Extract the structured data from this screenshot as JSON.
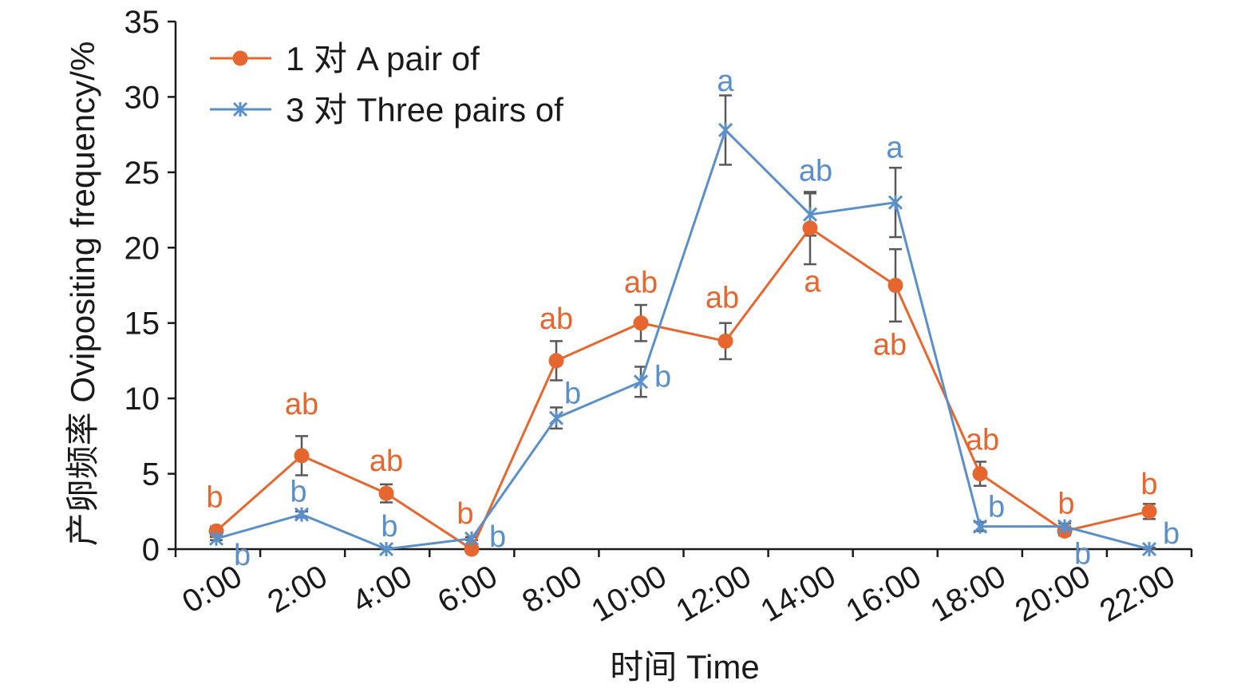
{
  "chart_data": {
    "type": "line",
    "xlabel": "时间 Time",
    "ylabel": "产卵频率 Ovipositing frequency/%",
    "ylim": [
      0,
      35
    ],
    "yticks": [
      "0",
      "5",
      "10",
      "15",
      "20",
      "25",
      "30",
      "35"
    ],
    "categories": [
      "0:00",
      "2:00",
      "4:00",
      "6:00",
      "8:00",
      "10:00",
      "12:00",
      "14:00",
      "16:00",
      "18:00",
      "20:00",
      "22:00"
    ],
    "legend_position": "top-left",
    "grid": false,
    "series": [
      {
        "name": "1 对 A pair of",
        "color": "#E5672F",
        "marker": "circle",
        "values": [
          1.2,
          6.2,
          3.7,
          0.0,
          12.5,
          15.0,
          13.8,
          21.3,
          17.5,
          5.0,
          1.2,
          2.5
        ],
        "errors": [
          0.3,
          1.3,
          0.6,
          0.2,
          1.3,
          1.2,
          1.2,
          2.4,
          2.4,
          0.8,
          0.3,
          0.5
        ],
        "significance": [
          "b",
          "ab",
          "ab",
          "b",
          "ab",
          "ab",
          "ab",
          "a",
          "ab",
          "ab",
          "b",
          "b"
        ]
      },
      {
        "name": "3 对 Three pairs of",
        "color": "#5B8FC9",
        "marker": "asterisk",
        "values": [
          0.7,
          2.3,
          0.0,
          0.7,
          8.7,
          11.1,
          27.8,
          22.2,
          23.0,
          1.5,
          1.5,
          0.0
        ],
        "errors": [
          0.1,
          0.2,
          0.1,
          0.1,
          0.7,
          1.0,
          2.3,
          1.4,
          2.3,
          0.3,
          0.2,
          0.1
        ],
        "significance": [
          "b",
          "b",
          "b",
          "b",
          "b",
          "b",
          "a",
          "ab",
          "a",
          "b",
          "b",
          "b"
        ]
      }
    ]
  }
}
